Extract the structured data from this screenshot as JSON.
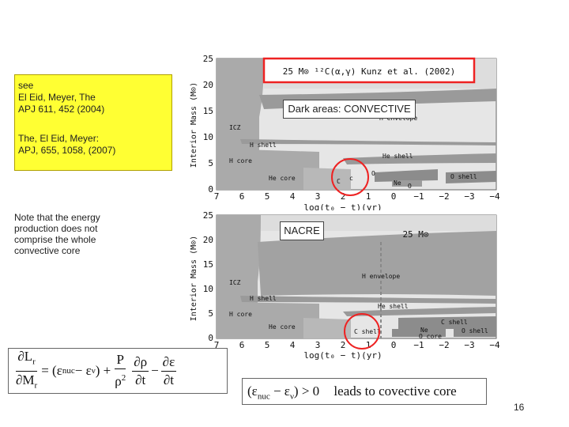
{
  "ref1": {
    "l1": "see",
    "l2": "El Eid, Meyer, The",
    "l3": "APJ 611, 452 (2004)",
    "l4": "The, El Eid, Meyer:",
    "l5": "APJ, 655, 1058, (2007)"
  },
  "note": {
    "l1": "Note that the energy",
    "l2": "production does not",
    "l3": "comprise the whole",
    "l4": "convective core"
  },
  "top_chart": {
    "title_text": "25 M⊙ ¹²C(α,γ) Kunz et al. (2002)",
    "box_label": "Dark areas: CONVECTIVE",
    "ylabel": "Interior Mass (M⊙)",
    "xlabel": "log(t₀ − t)(yr)",
    "yticks": [
      "25",
      "20",
      "15",
      "10",
      "5",
      "0"
    ],
    "xticks": [
      "7",
      "6",
      "5",
      "4",
      "3",
      "2",
      "1",
      "0",
      "−1",
      "−2",
      "−3",
      "−4"
    ],
    "regions": {
      "icz": "ICZ",
      "h_envelope": "H envelope",
      "h_shell": "H shell",
      "h_core": "H core",
      "he_core": "He core",
      "he_shell": "He shell",
      "c": "C",
      "c_small": "c",
      "o": "O",
      "ne": "Ne",
      "o_shell": "O shell",
      "o_small": "O"
    }
  },
  "bottom_chart": {
    "box_label": "NACRE",
    "title_text": "25 M⊙",
    "ylabel": "Interior Mass (M⊙)",
    "xlabel": "log(t₀ − t)(yr)",
    "yticks": [
      "25",
      "20",
      "15",
      "10",
      "5",
      "0"
    ],
    "xticks": [
      "7",
      "6",
      "5",
      "4",
      "3",
      "2",
      "1",
      "0",
      "−1",
      "−2",
      "−3",
      "−4"
    ],
    "regions": {
      "icz": "ICZ",
      "h_envelope": "H envelope",
      "h_shell": "H shell",
      "h_core": "H core",
      "he_core": "He core",
      "he_shell": "He shell",
      "c_shell": "C shell",
      "c_shell2": "C shell",
      "ne": "Ne",
      "o_core": "O core",
      "o_shell": "O shell"
    }
  },
  "equation": {
    "num1": "∂L",
    "num1_sub": "r",
    "den1": "∂M",
    "den1_sub": "r",
    "mid": "= (ε",
    "eps_nuc": "nuc",
    "minus": " − ε",
    "eps_nu": "ν",
    "close": ") +",
    "pnum": "P",
    "pden": "ρ",
    "pden_sup": "2",
    "dnum": "∂ρ",
    "dden": "∂t",
    "minus2": "−",
    "enum": "∂ε",
    "eden": "∂t"
  },
  "condition": {
    "lhs": "(ε",
    "nuc": "nuc",
    "mid": " − ε",
    "nu": "ν",
    "rhs": ") > 0",
    "text": "leads to covective core"
  },
  "colors": {
    "yellow": "#ffff33",
    "gray": "#aaaaaa",
    "dark": "#8c8c8c",
    "red": "#ee2222"
  },
  "page_number": "16"
}
